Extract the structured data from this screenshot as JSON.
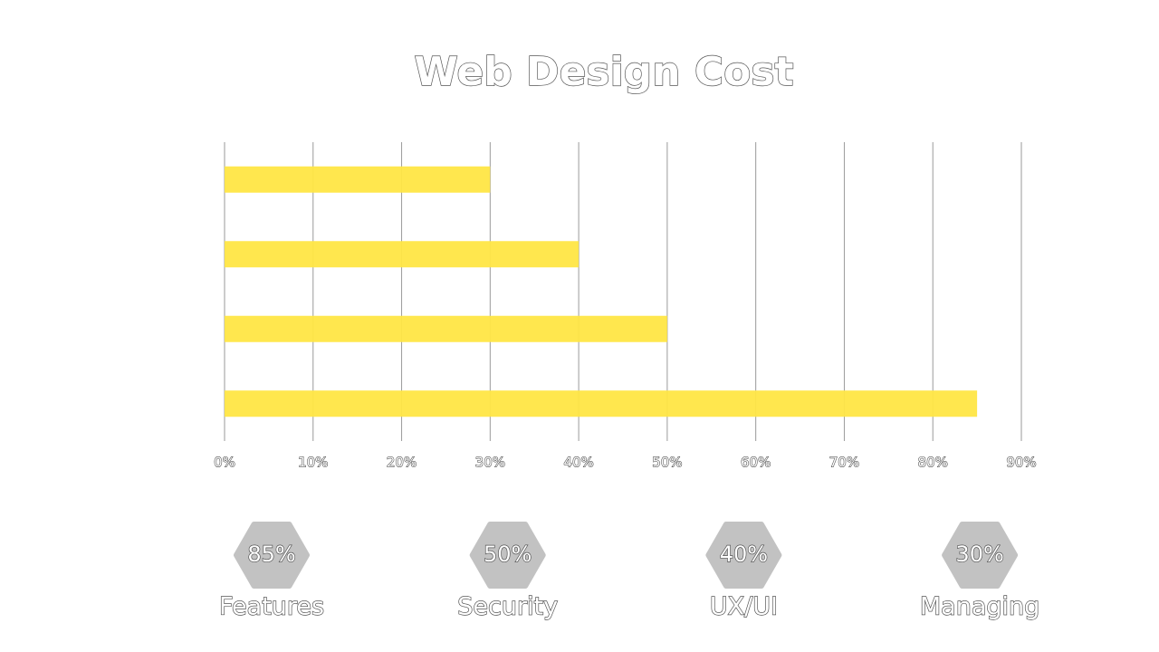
{
  "chart_data": {
    "type": "bar",
    "orientation": "horizontal",
    "title": "Web Design Cost",
    "categories": [
      "Managing",
      "UX/UI",
      "Security",
      "Features"
    ],
    "values": [
      30,
      40,
      50,
      85
    ],
    "value_labels": [
      "30%",
      "40%",
      "50%",
      "85%"
    ],
    "color": "#ffe645",
    "badge_color": "#c2c2c2",
    "xlim": [
      0,
      90
    ],
    "xticks": [
      {
        "value": 0,
        "label": "0%"
      },
      {
        "value": 10,
        "label": "10%"
      },
      {
        "value": 20,
        "label": "20%"
      },
      {
        "value": 30,
        "label": "30%"
      },
      {
        "value": 40,
        "label": "40%"
      },
      {
        "value": 50,
        "label": "50%"
      },
      {
        "value": 60,
        "label": "60%"
      },
      {
        "value": 70,
        "label": "70%"
      },
      {
        "value": 80,
        "label": "80%"
      },
      {
        "value": 90,
        "label": "90%"
      }
    ],
    "grid": true
  }
}
